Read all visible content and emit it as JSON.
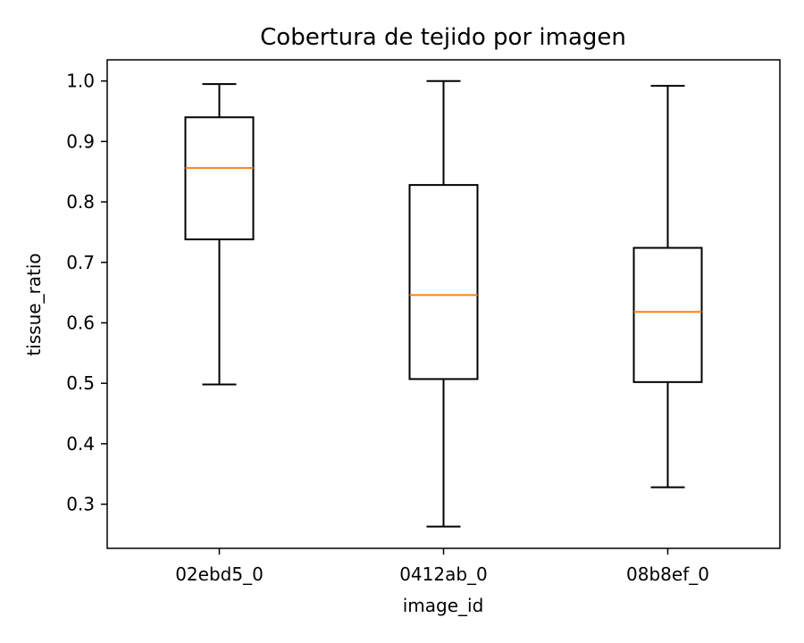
{
  "chart_data": {
    "type": "box",
    "title": "Cobertura de tejido por imagen",
    "xlabel": "image_id",
    "ylabel": "tissue_ratio",
    "ylim": [
      0.227,
      1.035
    ],
    "yticks": [
      0.3,
      0.4,
      0.5,
      0.6,
      0.7,
      0.8,
      0.9,
      1.0
    ],
    "ytick_labels": [
      "0.3",
      "0.4",
      "0.5",
      "0.6",
      "0.7",
      "0.8",
      "0.9",
      "1.0"
    ],
    "categories": [
      "02ebd5_0",
      "0412ab_0",
      "08b8ef_0"
    ],
    "boxes": [
      {
        "category": "02ebd5_0",
        "whisker_low": 0.498,
        "q1": 0.738,
        "median": 0.856,
        "q3": 0.94,
        "whisker_high": 0.995
      },
      {
        "category": "0412ab_0",
        "whisker_low": 0.263,
        "q1": 0.507,
        "median": 0.646,
        "q3": 0.828,
        "whisker_high": 1.0
      },
      {
        "category": "08b8ef_0",
        "whisker_low": 0.328,
        "q1": 0.502,
        "median": 0.618,
        "q3": 0.724,
        "whisker_high": 0.992
      }
    ],
    "grid": false,
    "colors": {
      "box": "#000000",
      "median": "#ff7f0e",
      "axes": "#000000",
      "background": "#ffffff"
    }
  }
}
